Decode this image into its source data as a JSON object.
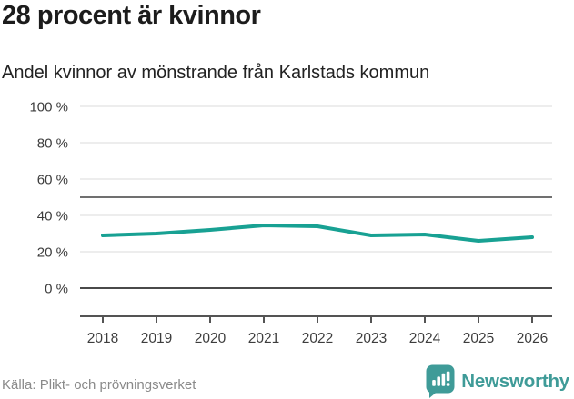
{
  "header": {
    "title": "28 procent är kvinnor",
    "subtitle": "Andel kvinnor av mönstrande från Karlstads kommun"
  },
  "footer": {
    "source": "Källa: Plikt- och prövningsverket",
    "brand": "Newsworthy"
  },
  "colors": {
    "line": "#18a193",
    "brand_teal": "#3f9b98",
    "grid": "#e2e2e2",
    "ref_line": "#707070",
    "zero_line": "#4a4a4a",
    "axis": "#545454",
    "tick_text": "#3d3d3d"
  },
  "chart_data": {
    "type": "line",
    "title": "28 procent är kvinnor",
    "subtitle": "Andel kvinnor av mönstrande från Karlstads kommun",
    "categories": [
      "2018",
      "2019",
      "2020",
      "2021",
      "2022",
      "2023",
      "2024",
      "2025",
      "2026"
    ],
    "series": [
      {
        "name": "Andel kvinnor av mönstrande från Karlstads kommun",
        "values": [
          29,
          30,
          32,
          34.5,
          34,
          29,
          29.5,
          26,
          28
        ]
      }
    ],
    "xlabel": "",
    "ylabel": "",
    "ylim": [
      0,
      100
    ],
    "yticks": [
      0,
      20,
      40,
      60,
      80,
      100
    ],
    "ytick_suffix": " %",
    "grid": true,
    "reference_line": 50,
    "legend": "none",
    "latest_value_label": "28 procent"
  }
}
